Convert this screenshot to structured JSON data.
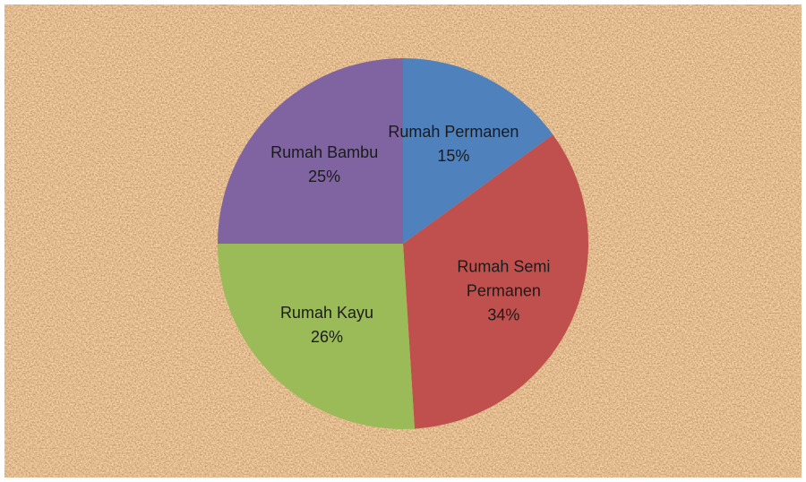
{
  "chart_data": {
    "type": "pie",
    "categories": [
      "Rumah Permanen",
      "Rumah Semi Permanen",
      "Rumah Kayu",
      "Rumah Bambu"
    ],
    "values": [
      15,
      34,
      26,
      25
    ],
    "value_labels": [
      "15%",
      "34%",
      "26%",
      "25%"
    ],
    "colors": [
      "#4f81bd",
      "#c0504d",
      "#9bbb59",
      "#8064a2"
    ]
  }
}
